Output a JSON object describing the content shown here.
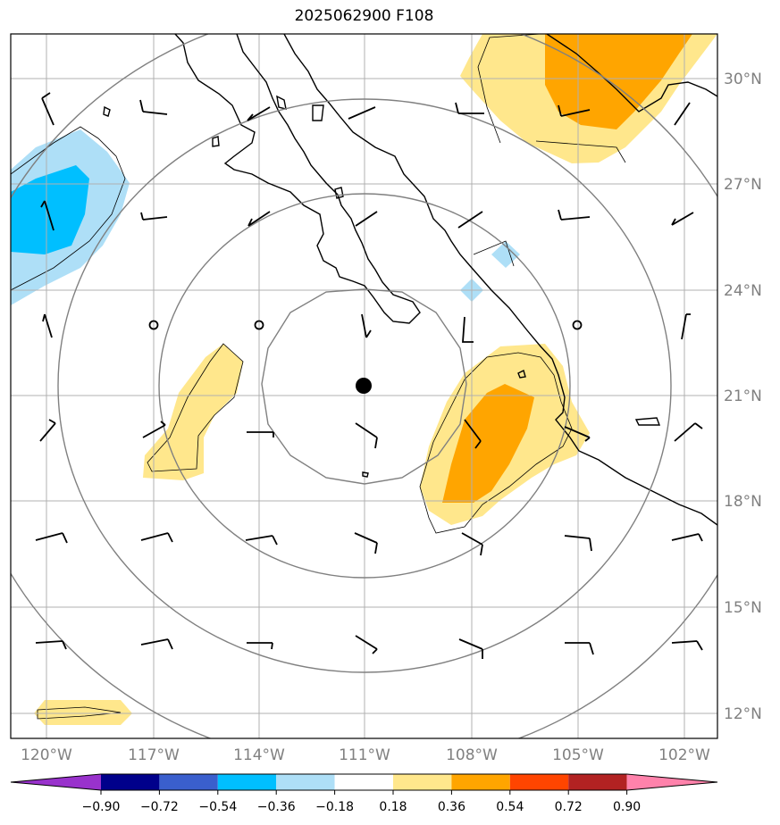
{
  "title": "2025062900 F108",
  "map": {
    "lon_labels": [
      "120°W",
      "117°W",
      "114°W",
      "111°W",
      "108°W",
      "105°W",
      "102°W"
    ],
    "lat_labels": [
      "30°N",
      "27°N",
      "24°N",
      "21°N",
      "18°N",
      "15°N",
      "12°N"
    ],
    "lon_values": [
      -120,
      -117,
      -114,
      -111,
      -108,
      -105,
      -102
    ],
    "lat_values": [
      30,
      27,
      24,
      21,
      18,
      15,
      12
    ],
    "center": {
      "lon": -111,
      "lat": 21.3
    },
    "range_rings_deg": [
      3,
      6,
      9,
      12
    ]
  },
  "colorbar": {
    "tick_labels": [
      "−0.90",
      "−0.72",
      "−0.54",
      "−0.36",
      "−0.18",
      "0.18",
      "0.36",
      "0.54",
      "0.72",
      "0.90"
    ],
    "colors": [
      "#9932cc",
      "#00008b",
      "#3a5fcd",
      "#00bfff",
      "#aedff7",
      "#ffffff",
      "#ffe78c",
      "#ffa500",
      "#ff4500",
      "#b22222",
      "#ff82ab"
    ],
    "extend": "both"
  }
}
